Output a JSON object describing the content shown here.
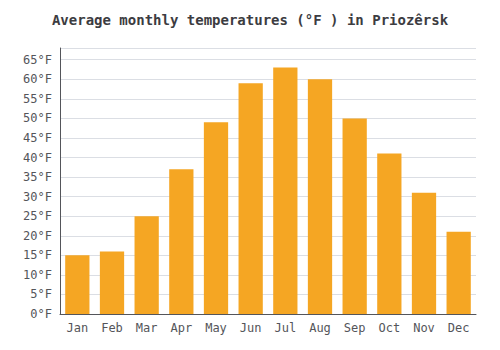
{
  "chart_data": {
    "type": "bar",
    "title": "Average monthly temperatures (°F ) in Priozêrsk",
    "categories": [
      "Jan",
      "Feb",
      "Mar",
      "Apr",
      "May",
      "Jun",
      "Jul",
      "Aug",
      "Sep",
      "Oct",
      "Nov",
      "Dec"
    ],
    "values": [
      15,
      16,
      25,
      37,
      49,
      59,
      63,
      60,
      50,
      41,
      31,
      21
    ],
    "color": "#F5A623",
    "ylim": [
      0,
      68
    ],
    "yticks": [
      {
        "value": 0,
        "label": "0°F"
      },
      {
        "value": 5,
        "label": "5°F"
      },
      {
        "value": 10,
        "label": "10°F"
      },
      {
        "value": 15,
        "label": "15°F"
      },
      {
        "value": 20,
        "label": "20°F"
      },
      {
        "value": 25,
        "label": "25°F"
      },
      {
        "value": 30,
        "label": "30°F"
      },
      {
        "value": 35,
        "label": "35°F"
      },
      {
        "value": 40,
        "label": "40°F"
      },
      {
        "value": 45,
        "label": "45°F"
      },
      {
        "value": 50,
        "label": "50°F"
      },
      {
        "value": 55,
        "label": "55°F"
      },
      {
        "value": 60,
        "label": "60°F"
      },
      {
        "value": 65,
        "label": "65°F"
      }
    ],
    "grid": true
  }
}
